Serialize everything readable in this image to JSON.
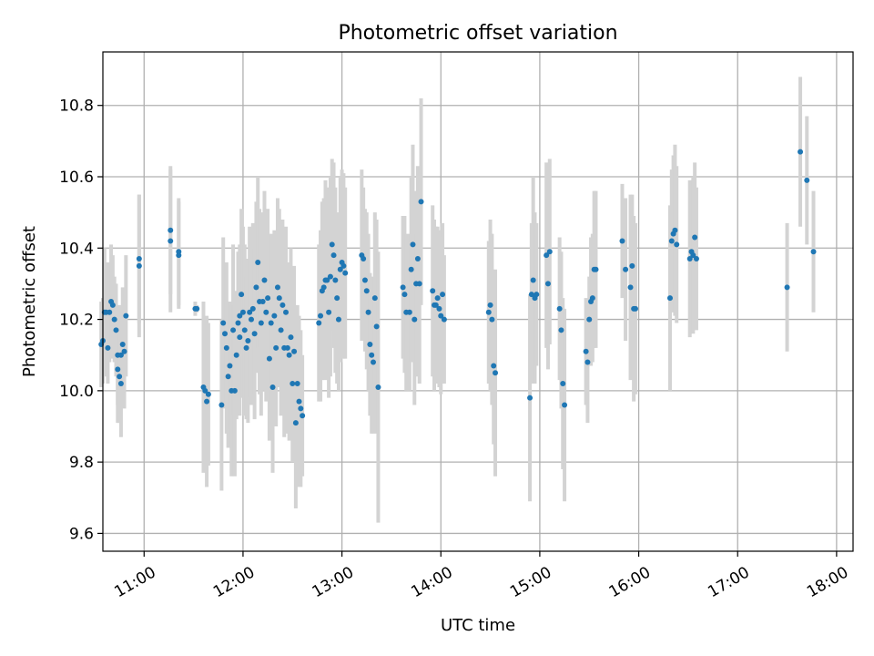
{
  "chart_data": {
    "type": "scatter",
    "title": "Photometric offset variation",
    "xlabel": "UTC time",
    "ylabel": "Photometric offset",
    "x_ticks": [
      "11:00",
      "12:00",
      "13:00",
      "14:00",
      "15:00",
      "16:00",
      "17:00",
      "18:00"
    ],
    "y_ticks": [
      "9.6",
      "9.8",
      "10.0",
      "10.2",
      "10.4",
      "10.6",
      "10.8"
    ],
    "xlim": [
      "10:35",
      "18:10"
    ],
    "ylim": [
      9.55,
      10.95
    ],
    "grid": true,
    "colors": {
      "marker": "#1f77b4",
      "errorbar": "#d3d3d3",
      "grid": "#b0b0b0"
    },
    "series": [
      {
        "points": [
          {
            "t": "10:34",
            "y": 10.13,
            "e": 0.12
          },
          {
            "t": "10:35",
            "y": 10.14,
            "e": 0.12
          },
          {
            "t": "10:36",
            "y": 10.22,
            "e": 0.18
          },
          {
            "t": "10:37",
            "y": 10.22,
            "e": 0.14
          },
          {
            "t": "10:38",
            "y": 10.12,
            "e": 0.1
          },
          {
            "t": "10:39",
            "y": 10.22,
            "e": 0.14
          },
          {
            "t": "10:40",
            "y": 10.25,
            "e": 0.16
          },
          {
            "t": "10:41",
            "y": 10.24,
            "e": 0.14
          },
          {
            "t": "10:42",
            "y": 10.2,
            "e": 0.12
          },
          {
            "t": "10:43",
            "y": 10.17,
            "e": 0.13
          },
          {
            "t": "10:44",
            "y": 10.1,
            "e": 0.14
          },
          {
            "t": "10:44",
            "y": 10.06,
            "e": 0.15
          },
          {
            "t": "10:45",
            "y": 10.04,
            "e": 0.13
          },
          {
            "t": "10:46",
            "y": 10.02,
            "e": 0.15
          },
          {
            "t": "10:46",
            "y": 10.1,
            "e": 0.14
          },
          {
            "t": "10:47",
            "y": 10.13,
            "e": 0.16
          },
          {
            "t": "10:48",
            "y": 10.11,
            "e": 0.16
          },
          {
            "t": "10:49",
            "y": 10.21,
            "e": 0.17
          },
          {
            "t": "10:57",
            "y": 10.37,
            "e": 0.18
          },
          {
            "t": "10:57",
            "y": 10.35,
            "e": 0.2
          },
          {
            "t": "11:16",
            "y": 10.45,
            "e": 0.18
          },
          {
            "t": "11:16",
            "y": 10.42,
            "e": 0.2
          },
          {
            "t": "11:21",
            "y": 10.38,
            "e": 0.15
          },
          {
            "t": "11:21",
            "y": 10.39,
            "e": 0.15
          },
          {
            "t": "11:31",
            "y": 10.23,
            "e": 0.02
          },
          {
            "t": "11:32",
            "y": 10.23,
            "e": 0.01
          },
          {
            "t": "11:36",
            "y": 10.01,
            "e": 0.24
          },
          {
            "t": "11:37",
            "y": 10.0,
            "e": 0.15
          },
          {
            "t": "11:38",
            "y": 9.97,
            "e": 0.24
          },
          {
            "t": "11:39",
            "y": 9.99,
            "e": 0.2
          },
          {
            "t": "11:47",
            "y": 9.96,
            "e": 0.24
          },
          {
            "t": "11:48",
            "y": 10.19,
            "e": 0.24
          },
          {
            "t": "11:49",
            "y": 10.16,
            "e": 0.2
          },
          {
            "t": "11:50",
            "y": 10.12,
            "e": 0.24
          },
          {
            "t": "11:51",
            "y": 10.04,
            "e": 0.2
          },
          {
            "t": "11:52",
            "y": 10.07,
            "e": 0.18
          },
          {
            "t": "11:53",
            "y": 10.0,
            "e": 0.24
          },
          {
            "t": "11:54",
            "y": 10.17,
            "e": 0.24
          },
          {
            "t": "11:55",
            "y": 10.0,
            "e": 0.24
          },
          {
            "t": "11:56",
            "y": 10.1,
            "e": 0.18
          },
          {
            "t": "11:57",
            "y": 10.19,
            "e": 0.2
          },
          {
            "t": "11:58",
            "y": 10.15,
            "e": 0.22
          },
          {
            "t": "11:58",
            "y": 10.21,
            "e": 0.2
          },
          {
            "t": "11:59",
            "y": 10.27,
            "e": 0.24
          },
          {
            "t": "12:00",
            "y": 10.22,
            "e": 0.24
          },
          {
            "t": "12:01",
            "y": 10.17,
            "e": 0.24
          },
          {
            "t": "12:02",
            "y": 10.12,
            "e": 0.2
          },
          {
            "t": "12:03",
            "y": 10.14,
            "e": 0.23
          },
          {
            "t": "12:04",
            "y": 10.22,
            "e": 0.24
          },
          {
            "t": "12:05",
            "y": 10.2,
            "e": 0.24
          },
          {
            "t": "12:06",
            "y": 10.23,
            "e": 0.24
          },
          {
            "t": "12:07",
            "y": 10.16,
            "e": 0.24
          },
          {
            "t": "12:08",
            "y": 10.29,
            "e": 0.24
          },
          {
            "t": "12:09",
            "y": 10.36,
            "e": 0.24
          },
          {
            "t": "12:10",
            "y": 10.25,
            "e": 0.26
          },
          {
            "t": "12:11",
            "y": 10.19,
            "e": 0.26
          },
          {
            "t": "12:12",
            "y": 10.25,
            "e": 0.25
          },
          {
            "t": "12:13",
            "y": 10.31,
            "e": 0.25
          },
          {
            "t": "12:14",
            "y": 10.22,
            "e": 0.25
          },
          {
            "t": "12:15",
            "y": 10.26,
            "e": 0.25
          },
          {
            "t": "12:16",
            "y": 10.09,
            "e": 0.23
          },
          {
            "t": "12:17",
            "y": 10.19,
            "e": 0.25
          },
          {
            "t": "12:18",
            "y": 10.01,
            "e": 0.24
          },
          {
            "t": "12:19",
            "y": 10.21,
            "e": 0.24
          },
          {
            "t": "12:20",
            "y": 10.12,
            "e": 0.22
          },
          {
            "t": "12:21",
            "y": 10.29,
            "e": 0.25
          },
          {
            "t": "12:22",
            "y": 10.26,
            "e": 0.25
          },
          {
            "t": "12:23",
            "y": 10.17,
            "e": 0.24
          },
          {
            "t": "12:24",
            "y": 10.24,
            "e": 0.24
          },
          {
            "t": "12:25",
            "y": 10.12,
            "e": 0.25
          },
          {
            "t": "12:26",
            "y": 10.22,
            "e": 0.24
          },
          {
            "t": "12:27",
            "y": 10.12,
            "e": 0.24
          },
          {
            "t": "12:28",
            "y": 10.1,
            "e": 0.24
          },
          {
            "t": "12:29",
            "y": 10.15,
            "e": 0.25
          },
          {
            "t": "12:30",
            "y": 10.02,
            "e": 0.22
          },
          {
            "t": "12:31",
            "y": 10.11,
            "e": 0.24
          },
          {
            "t": "12:32",
            "y": 9.91,
            "e": 0.24
          },
          {
            "t": "12:33",
            "y": 10.02,
            "e": 0.22
          },
          {
            "t": "12:34",
            "y": 9.97,
            "e": 0.24
          },
          {
            "t": "12:35",
            "y": 9.95,
            "e": 0.22
          },
          {
            "t": "12:36",
            "y": 9.93,
            "e": 0.17
          },
          {
            "t": "12:46",
            "y": 10.19,
            "e": 0.22
          },
          {
            "t": "12:47",
            "y": 10.21,
            "e": 0.24
          },
          {
            "t": "12:48",
            "y": 10.28,
            "e": 0.25
          },
          {
            "t": "12:49",
            "y": 10.29,
            "e": 0.25
          },
          {
            "t": "12:50",
            "y": 10.31,
            "e": 0.28
          },
          {
            "t": "12:51",
            "y": 10.31,
            "e": 0.26
          },
          {
            "t": "12:52",
            "y": 10.22,
            "e": 0.24
          },
          {
            "t": "12:53",
            "y": 10.32,
            "e": 0.28
          },
          {
            "t": "12:54",
            "y": 10.41,
            "e": 0.24
          },
          {
            "t": "12:55",
            "y": 10.38,
            "e": 0.26
          },
          {
            "t": "12:56",
            "y": 10.31,
            "e": 0.26
          },
          {
            "t": "12:57",
            "y": 10.26,
            "e": 0.24
          },
          {
            "t": "12:58",
            "y": 10.2,
            "e": 0.2
          },
          {
            "t": "12:59",
            "y": 10.34,
            "e": 0.26
          },
          {
            "t": "13:00",
            "y": 10.36,
            "e": 0.26
          },
          {
            "t": "13:01",
            "y": 10.35,
            "e": 0.26
          },
          {
            "t": "13:02",
            "y": 10.33,
            "e": 0.24
          },
          {
            "t": "13:12",
            "y": 10.38,
            "e": 0.24
          },
          {
            "t": "13:13",
            "y": 10.37,
            "e": 0.2
          },
          {
            "t": "13:14",
            "y": 10.31,
            "e": 0.2
          },
          {
            "t": "13:15",
            "y": 10.28,
            "e": 0.22
          },
          {
            "t": "13:16",
            "y": 10.22,
            "e": 0.22
          },
          {
            "t": "13:17",
            "y": 10.13,
            "e": 0.2
          },
          {
            "t": "13:18",
            "y": 10.1,
            "e": 0.22
          },
          {
            "t": "13:19",
            "y": 10.08,
            "e": 0.2
          },
          {
            "t": "13:20",
            "y": 10.26,
            "e": 0.24
          },
          {
            "t": "13:21",
            "y": 10.18,
            "e": 0.3
          },
          {
            "t": "13:22",
            "y": 10.01,
            "e": 0.38
          },
          {
            "t": "13:37",
            "y": 10.29,
            "e": 0.2
          },
          {
            "t": "13:38",
            "y": 10.27,
            "e": 0.22
          },
          {
            "t": "13:39",
            "y": 10.22,
            "e": 0.22
          },
          {
            "t": "13:41",
            "y": 10.22,
            "e": 0.22
          },
          {
            "t": "13:42",
            "y": 10.34,
            "e": 0.26
          },
          {
            "t": "13:43",
            "y": 10.41,
            "e": 0.28
          },
          {
            "t": "13:44",
            "y": 10.2,
            "e": 0.24
          },
          {
            "t": "13:45",
            "y": 10.3,
            "e": 0.26
          },
          {
            "t": "13:46",
            "y": 10.37,
            "e": 0.26
          },
          {
            "t": "13:47",
            "y": 10.3,
            "e": 0.28
          },
          {
            "t": "13:48",
            "y": 10.53,
            "e": 0.29
          },
          {
            "t": "13:55",
            "y": 10.28,
            "e": 0.24
          },
          {
            "t": "13:56",
            "y": 10.24,
            "e": 0.24
          },
          {
            "t": "13:57",
            "y": 10.24,
            "e": 0.22
          },
          {
            "t": "13:58",
            "y": 10.26,
            "e": 0.2
          },
          {
            "t": "13:59",
            "y": 10.23,
            "e": 0.22
          },
          {
            "t": "14:00",
            "y": 10.21,
            "e": 0.22
          },
          {
            "t": "14:01",
            "y": 10.27,
            "e": 0.2
          },
          {
            "t": "14:02",
            "y": 10.2,
            "e": 0.18
          },
          {
            "t": "14:29",
            "y": 10.22,
            "e": 0.2
          },
          {
            "t": "14:30",
            "y": 10.24,
            "e": 0.24
          },
          {
            "t": "14:31",
            "y": 10.2,
            "e": 0.24
          },
          {
            "t": "14:32",
            "y": 10.07,
            "e": 0.22
          },
          {
            "t": "14:33",
            "y": 10.05,
            "e": 0.29
          },
          {
            "t": "14:54",
            "y": 9.98,
            "e": 0.29
          },
          {
            "t": "14:55",
            "y": 10.27,
            "e": 0.2
          },
          {
            "t": "14:56",
            "y": 10.31,
            "e": 0.29
          },
          {
            "t": "14:57",
            "y": 10.26,
            "e": 0.24
          },
          {
            "t": "14:58",
            "y": 10.27,
            "e": 0.2
          },
          {
            "t": "15:04",
            "y": 10.38,
            "e": 0.26
          },
          {
            "t": "15:05",
            "y": 10.3,
            "e": 0.24
          },
          {
            "t": "15:06",
            "y": 10.39,
            "e": 0.26
          },
          {
            "t": "15:12",
            "y": 10.23,
            "e": 0.2
          },
          {
            "t": "15:13",
            "y": 10.17,
            "e": 0.22
          },
          {
            "t": "15:14",
            "y": 10.02,
            "e": 0.24
          },
          {
            "t": "15:15",
            "y": 9.96,
            "e": 0.27
          },
          {
            "t": "15:28",
            "y": 10.11,
            "e": 0.15
          },
          {
            "t": "15:29",
            "y": 10.08,
            "e": 0.17
          },
          {
            "t": "15:30",
            "y": 10.2,
            "e": 0.12
          },
          {
            "t": "15:31",
            "y": 10.25,
            "e": 0.18
          },
          {
            "t": "15:32",
            "y": 10.26,
            "e": 0.18
          },
          {
            "t": "15:33",
            "y": 10.34,
            "e": 0.22
          },
          {
            "t": "15:34",
            "y": 10.34,
            "e": 0.22
          },
          {
            "t": "15:50",
            "y": 10.42,
            "e": 0.16
          },
          {
            "t": "15:52",
            "y": 10.34,
            "e": 0.2
          },
          {
            "t": "15:55",
            "y": 10.29,
            "e": 0.26
          },
          {
            "t": "15:56",
            "y": 10.35,
            "e": 0.2
          },
          {
            "t": "15:57",
            "y": 10.23,
            "e": 0.26
          },
          {
            "t": "15:58",
            "y": 10.23,
            "e": 0.24
          },
          {
            "t": "16:19",
            "y": 10.26,
            "e": 0.26
          },
          {
            "t": "16:20",
            "y": 10.42,
            "e": 0.2
          },
          {
            "t": "16:21",
            "y": 10.44,
            "e": 0.22
          },
          {
            "t": "16:22",
            "y": 10.45,
            "e": 0.24
          },
          {
            "t": "16:23",
            "y": 10.41,
            "e": 0.22
          },
          {
            "t": "16:31",
            "y": 10.37,
            "e": 0.22
          },
          {
            "t": "16:32",
            "y": 10.39,
            "e": 0.2
          },
          {
            "t": "16:33",
            "y": 10.38,
            "e": 0.22
          },
          {
            "t": "16:34",
            "y": 10.43,
            "e": 0.21
          },
          {
            "t": "16:35",
            "y": 10.37,
            "e": 0.2
          },
          {
            "t": "17:30",
            "y": 10.29,
            "e": 0.18
          },
          {
            "t": "17:38",
            "y": 10.67,
            "e": 0.21
          },
          {
            "t": "17:42",
            "y": 10.59,
            "e": 0.18
          },
          {
            "t": "17:46",
            "y": 10.39,
            "e": 0.17
          }
        ]
      }
    ]
  }
}
